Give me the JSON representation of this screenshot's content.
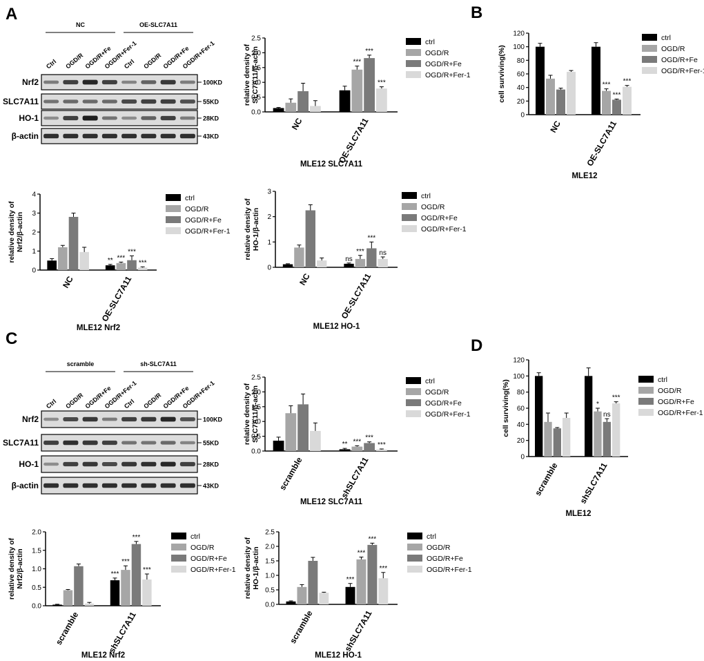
{
  "panel_letters": [
    "A",
    "B",
    "C",
    "D"
  ],
  "colors": {
    "ctrl": "#000000",
    "ogdr": "#a6a6a6",
    "ogdr_fe": "#7a7a7a",
    "ogdr_fer1": "#d9d9d9",
    "blot_bg": "#dcdcdc",
    "band": "#3a3a3a"
  },
  "legend_labels": [
    "ctrl",
    "OGD/R",
    "OGD/R+Fe",
    "OGD/R+Fer-1"
  ],
  "panel_a": {
    "blot": {
      "groups": [
        "NC",
        "OE-SLC7A11"
      ],
      "lanes": [
        "Ctrl",
        "OGD/R",
        "OGD/R+Fe",
        "OGD/R+Fer-1",
        "Ctrl",
        "OGD/R",
        "OGD/R+Fe",
        "OGD/R+Fer-1"
      ],
      "rows": [
        {
          "label": "Nrf2",
          "size": "100KD",
          "intensity": [
            0.45,
            0.8,
            0.95,
            0.8,
            0.4,
            0.6,
            0.85,
            0.45
          ]
        },
        {
          "label": "SLC7A11",
          "size": "55KD",
          "intensity": [
            0.5,
            0.55,
            0.55,
            0.55,
            0.75,
            0.8,
            0.8,
            0.7
          ]
        },
        {
          "label": "HO-1",
          "size": "28KD",
          "intensity": [
            0.35,
            0.8,
            1.0,
            0.5,
            0.35,
            0.6,
            0.8,
            0.45
          ]
        },
        {
          "label": "β-actin",
          "size": "43KD",
          "intensity": [
            0.9,
            0.9,
            0.9,
            0.9,
            0.9,
            0.9,
            0.9,
            0.9
          ]
        }
      ]
    }
  },
  "panel_c": {
    "blot": {
      "groups": [
        "scramble",
        "sh-SLC7A11"
      ],
      "lanes": [
        "Ctrl",
        "OGD/R",
        "OGD/R+Fe",
        "OGD/R+Fer-1",
        "Ctrl",
        "OGD/R",
        "OGD/R+Fe",
        "OGD/R+Fer-1"
      ],
      "rows": [
        {
          "label": "Nrf2",
          "size": "100KD",
          "intensity": [
            0.35,
            0.75,
            0.85,
            0.45,
            0.8,
            0.85,
            0.95,
            0.7
          ]
        },
        {
          "label": "SLC7A11",
          "size": "55KD",
          "intensity": [
            0.8,
            0.9,
            0.85,
            0.8,
            0.5,
            0.5,
            0.55,
            0.4
          ]
        },
        {
          "label": "HO-1",
          "size": "28KD",
          "intensity": [
            0.35,
            0.8,
            0.85,
            0.75,
            0.85,
            0.9,
            0.95,
            0.8
          ]
        },
        {
          "label": "β-actin",
          "size": "43KD",
          "intensity": [
            0.9,
            0.9,
            0.9,
            0.9,
            0.9,
            0.9,
            0.9,
            0.9
          ]
        }
      ]
    }
  },
  "chart_data": [
    {
      "id": "a-slc7a11",
      "type": "bar",
      "title": "MLE12  SLC7A11",
      "ylabel": [
        "relative density of",
        "SLC7A11/β-actin"
      ],
      "ylim": [
        0,
        2.5
      ],
      "yticks": [
        "0.0",
        "0.5",
        "1.0",
        "1.5",
        "2.0",
        "2.5"
      ],
      "categories": [
        "NC",
        "OE-SLC7A11"
      ],
      "series": [
        {
          "name": "ctrl",
          "values": [
            0.13,
            0.73
          ],
          "errors": [
            0.02,
            0.14
          ]
        },
        {
          "name": "OGD/R",
          "values": [
            0.31,
            1.43
          ],
          "errors": [
            0.13,
            0.12
          ]
        },
        {
          "name": "OGD/R+Fe",
          "values": [
            0.7,
            1.82
          ],
          "errors": [
            0.27,
            0.1
          ]
        },
        {
          "name": "OGD/R+Fer-1",
          "values": [
            0.2,
            0.79
          ],
          "errors": [
            0.18,
            0.06
          ]
        }
      ],
      "annotations": [
        [
          "",
          ""
        ],
        [
          "",
          "***"
        ],
        [
          "",
          "***"
        ],
        [
          "",
          "***"
        ]
      ]
    },
    {
      "id": "b-survival",
      "type": "bar",
      "title": "MLE12",
      "ylabel": [
        "cell surviving(%)"
      ],
      "ylim": [
        0,
        120
      ],
      "yticks": [
        "0",
        "20",
        "40",
        "60",
        "80",
        "100",
        "120"
      ],
      "categories": [
        "NC",
        "OE-SLC7A11"
      ],
      "series": [
        {
          "name": "ctrl",
          "values": [
            100,
            100
          ],
          "errors": [
            5,
            6
          ]
        },
        {
          "name": "OGD/R",
          "values": [
            53,
            35
          ],
          "errors": [
            5,
            3
          ]
        },
        {
          "name": "OGD/R+Fe",
          "values": [
            37,
            22
          ],
          "errors": [
            2,
            1
          ]
        },
        {
          "name": "OGD/R+Fer-1",
          "values": [
            63,
            41
          ],
          "errors": [
            2,
            2
          ]
        }
      ],
      "annotations": [
        [
          "",
          ""
        ],
        [
          "",
          "***"
        ],
        [
          "",
          "***"
        ],
        [
          "",
          "***"
        ]
      ]
    },
    {
      "id": "a-nrf2",
      "type": "bar",
      "title": "MLE12  Nrf2",
      "ylabel": [
        "relative density of",
        "Nrf2/β-actin"
      ],
      "ylim": [
        0,
        4
      ],
      "yticks": [
        "0",
        "1",
        "2",
        "3",
        "4"
      ],
      "categories": [
        "NC",
        "OE-SLC7A11"
      ],
      "series": [
        {
          "name": "ctrl",
          "values": [
            0.5,
            0.25
          ],
          "errors": [
            0.1,
            0.05
          ]
        },
        {
          "name": "OGD/R",
          "values": [
            1.2,
            0.37
          ],
          "errors": [
            0.1,
            0.05
          ]
        },
        {
          "name": "OGD/R+Fe",
          "values": [
            2.8,
            0.52
          ],
          "errors": [
            0.2,
            0.23
          ]
        },
        {
          "name": "OGD/R+Fer-1",
          "values": [
            0.95,
            0.13
          ],
          "errors": [
            0.25,
            0.04
          ]
        }
      ],
      "annotations": [
        [
          "",
          "**"
        ],
        [
          "",
          "***"
        ],
        [
          "",
          "***"
        ],
        [
          "",
          "***"
        ]
      ]
    },
    {
      "id": "a-ho1",
      "type": "bar",
      "title": "MLE12  HO-1",
      "ylabel": [
        "relative density of",
        "HO-1/β-actin"
      ],
      "ylim": [
        0,
        3
      ],
      "yticks": [
        "0",
        "1",
        "2",
        "3"
      ],
      "categories": [
        "NC",
        "OE-SLC7A11"
      ],
      "series": [
        {
          "name": "ctrl",
          "values": [
            0.12,
            0.14
          ],
          "errors": [
            0.02,
            0.03
          ]
        },
        {
          "name": "OGD/R",
          "values": [
            0.78,
            0.33
          ],
          "errors": [
            0.1,
            0.14
          ]
        },
        {
          "name": "OGD/R+Fe",
          "values": [
            2.25,
            0.75
          ],
          "errors": [
            0.22,
            0.25
          ]
        },
        {
          "name": "OGD/R+Fer-1",
          "values": [
            0.27,
            0.33
          ],
          "errors": [
            0.1,
            0.08
          ]
        }
      ],
      "annotations": [
        [
          "",
          "ns"
        ],
        [
          "",
          "***"
        ],
        [
          "",
          "***"
        ],
        [
          "",
          "ns"
        ]
      ]
    },
    {
      "id": "c-slc7a11",
      "type": "bar",
      "title": "MLE12  SLC7A11",
      "ylabel": [
        "relative density of",
        "SLC7A11/β-actin"
      ],
      "ylim": [
        0,
        2.5
      ],
      "yticks": [
        "0.0",
        "0.5",
        "1.0",
        "1.5",
        "2.0",
        "2.5"
      ],
      "categories": [
        "scramble",
        "shSLC7A11"
      ],
      "series": [
        {
          "name": "ctrl",
          "values": [
            0.35,
            0.06
          ],
          "errors": [
            0.12,
            0.03
          ]
        },
        {
          "name": "OGD/R",
          "values": [
            1.28,
            0.15
          ],
          "errors": [
            0.25,
            0.03
          ]
        },
        {
          "name": "OGD/R+Fe",
          "values": [
            1.58,
            0.27
          ],
          "errors": [
            0.35,
            0.04
          ]
        },
        {
          "name": "OGD/R+Fer-1",
          "values": [
            0.68,
            0.05
          ],
          "errors": [
            0.27,
            0.02
          ]
        }
      ],
      "annotations": [
        [
          "",
          "**"
        ],
        [
          "",
          "***"
        ],
        [
          "",
          "***"
        ],
        [
          "",
          "***"
        ]
      ]
    },
    {
      "id": "d-survival",
      "type": "bar",
      "title": "MLE12",
      "ylabel": [
        "cell surviving(%)"
      ],
      "ylim": [
        0,
        120
      ],
      "yticks": [
        "0",
        "20",
        "40",
        "60",
        "80",
        "100",
        "120"
      ],
      "categories": [
        "scramble",
        "shSLC7A11"
      ],
      "series": [
        {
          "name": "ctrl",
          "values": [
            100,
            100
          ],
          "errors": [
            4,
            10
          ]
        },
        {
          "name": "OGD/R",
          "values": [
            43,
            56
          ],
          "errors": [
            11,
            4
          ]
        },
        {
          "name": "OGD/R+Fe",
          "values": [
            35,
            43
          ],
          "errors": [
            1,
            4
          ]
        },
        {
          "name": "OGD/R+Fer-1",
          "values": [
            48,
            66
          ],
          "errors": [
            6,
            2
          ]
        }
      ],
      "annotations": [
        [
          "",
          ""
        ],
        [
          "",
          "*"
        ],
        [
          "",
          "ns"
        ],
        [
          "",
          "***"
        ]
      ]
    },
    {
      "id": "c-nrf2",
      "type": "bar",
      "title": "MLE12  Nrf2",
      "ylabel": [
        "relative density of",
        "Nrf2/β-actin"
      ],
      "ylim": [
        0,
        2.0
      ],
      "yticks": [
        "0.0",
        "0.5",
        "1.0",
        "1.5",
        "2.0"
      ],
      "categories": [
        "scramble",
        "shSLC7A11"
      ],
      "series": [
        {
          "name": "ctrl",
          "values": [
            0.03,
            0.69
          ],
          "errors": [
            0.01,
            0.06
          ]
        },
        {
          "name": "OGD/R",
          "values": [
            0.42,
            0.97
          ],
          "errors": [
            0.02,
            0.11
          ]
        },
        {
          "name": "OGD/R+Fe",
          "values": [
            1.07,
            1.67
          ],
          "errors": [
            0.06,
            0.07
          ]
        },
        {
          "name": "OGD/R+Fer-1",
          "values": [
            0.06,
            0.71
          ],
          "errors": [
            0.03,
            0.15
          ]
        }
      ],
      "annotations": [
        [
          "",
          "***"
        ],
        [
          "",
          "***"
        ],
        [
          "",
          "***"
        ],
        [
          "",
          "***"
        ]
      ]
    },
    {
      "id": "c-ho1",
      "type": "bar",
      "title": "MLE12  HO-1",
      "ylabel": [
        "relative density of",
        "HO-1/β-actin"
      ],
      "ylim": [
        0,
        2.5
      ],
      "yticks": [
        "0.0",
        "0.5",
        "1.0",
        "1.5",
        "2.0",
        "2.5"
      ],
      "categories": [
        "scramble",
        "shSLC7A11"
      ],
      "series": [
        {
          "name": "ctrl",
          "values": [
            0.1,
            0.6
          ],
          "errors": [
            0.02,
            0.12
          ]
        },
        {
          "name": "OGD/R",
          "values": [
            0.6,
            1.55
          ],
          "errors": [
            0.08,
            0.08
          ]
        },
        {
          "name": "OGD/R+Fe",
          "values": [
            1.5,
            2.05
          ],
          "errors": [
            0.12,
            0.06
          ]
        },
        {
          "name": "OGD/R+Fer-1",
          "values": [
            0.4,
            0.9
          ],
          "errors": [
            0.02,
            0.2
          ]
        }
      ],
      "annotations": [
        [
          "",
          "***"
        ],
        [
          "",
          "***"
        ],
        [
          "",
          "***"
        ],
        [
          "",
          "***"
        ]
      ]
    }
  ]
}
